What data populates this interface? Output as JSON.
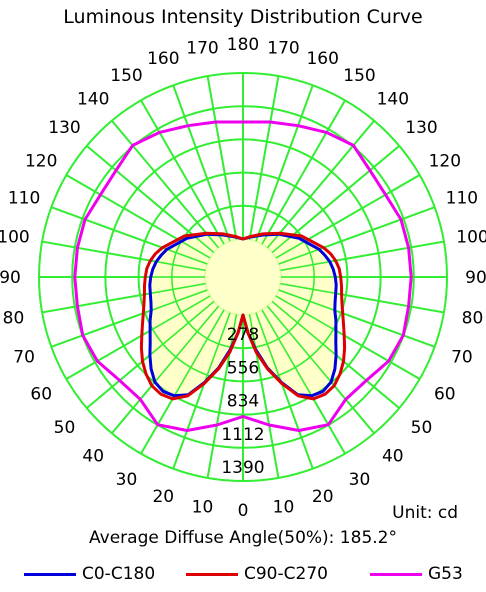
{
  "title": "Luminous Intensity Distribution Curve",
  "unit_text": "Unit: cd",
  "average_text": "Average Diffuse Angle(50%): 185.2°",
  "legend": [
    {
      "label": "C0-C180",
      "color": "#0000dd"
    },
    {
      "label": "C90-C270",
      "color": "#dd0000"
    },
    {
      "label": "G53",
      "color": "#ee00ee"
    }
  ],
  "colors": {
    "grid": "#33ee33",
    "fill": "#ffffc0",
    "text": "#000000"
  },
  "chart_data": {
    "type": "polar",
    "angle_labels": [
      "0",
      "10",
      "20",
      "30",
      "40",
      "50",
      "60",
      "70",
      "80",
      "90",
      "100",
      "110",
      "120",
      "130",
      "140",
      "150",
      "160",
      "170",
      "180"
    ],
    "radial_ticks": [
      "278",
      "556",
      "834",
      "1112",
      "1390"
    ],
    "radial_values": [
      278,
      556,
      834,
      1112,
      1390
    ],
    "r_max": 1390,
    "series": [
      {
        "name": "C0-C180",
        "color": "#0000dd",
        "angles": [
          0,
          5,
          10,
          15,
          20,
          25,
          30,
          35,
          40,
          45,
          50,
          55,
          60,
          65,
          70,
          75,
          80,
          85,
          90,
          95,
          100,
          105,
          110,
          125,
          140,
          155,
          170,
          180
        ],
        "values": [
          0,
          150,
          300,
          470,
          620,
          770,
          830,
          850,
          830,
          770,
          700,
          630,
          580,
          540,
          500,
          480,
          470,
          465,
          455,
          440,
          420,
          390,
          360,
          250,
          150,
          70,
          20,
          0
        ]
      },
      {
        "name": "C90-C270",
        "color": "#dd0000",
        "angles": [
          0,
          5,
          10,
          15,
          20,
          25,
          30,
          35,
          40,
          45,
          50,
          55,
          60,
          65,
          70,
          75,
          80,
          85,
          90,
          95,
          100,
          105,
          110,
          125,
          140,
          155,
          170,
          180
        ],
        "values": [
          0,
          150,
          320,
          480,
          630,
          780,
          860,
          880,
          870,
          830,
          780,
          720,
          660,
          610,
          570,
          540,
          520,
          510,
          500,
          490,
          470,
          440,
          400,
          280,
          160,
          80,
          25,
          0
        ]
      },
      {
        "name": "G53",
        "color": "#ee00ee",
        "angles": [
          0,
          10,
          20,
          30,
          40,
          50,
          60,
          70,
          80,
          90,
          100,
          110,
          120,
          130,
          140,
          150,
          160,
          170,
          180
        ],
        "values": [
          850,
          940,
          1050,
          1110,
          1020,
          1030,
          1090,
          1110,
          1090,
          1090,
          1090,
          1090,
          1060,
          1070,
          1120,
          1080,
          1030,
          1000,
          980
        ]
      }
    ],
    "fill_series": "C0-C180"
  }
}
